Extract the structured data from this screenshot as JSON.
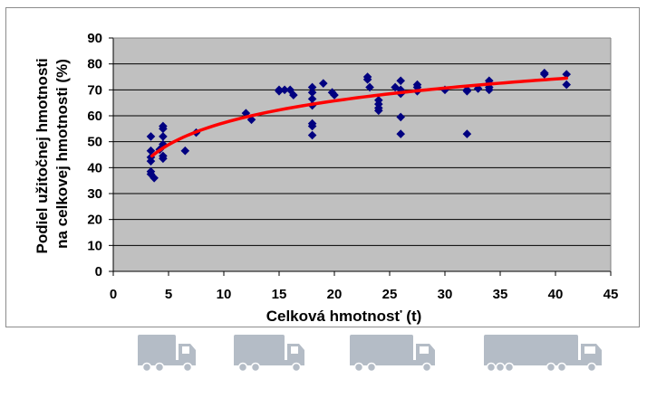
{
  "chart_data": {
    "type": "scatter",
    "title": "",
    "xlabel": "Celková hmotnosť (t)",
    "ylabel_lines": [
      "Podiel užitočnej hmotnosti",
      "na celkovej hmotnosti (%)"
    ],
    "xlim": [
      0,
      45
    ],
    "ylim": [
      0,
      90
    ],
    "x_ticks": [
      0,
      5,
      10,
      15,
      20,
      25,
      30,
      35,
      40,
      45
    ],
    "y_ticks": [
      0,
      10,
      20,
      30,
      40,
      50,
      60,
      70,
      80,
      90
    ],
    "grid": true,
    "legend": "none",
    "plot_background": "#c0c0c0",
    "series": [
      {
        "kind": "points",
        "marker": "diamond",
        "color": "#000080",
        "points": [
          [
            3.4,
            52
          ],
          [
            3.4,
            46.5
          ],
          [
            3.4,
            44
          ],
          [
            3.4,
            42.5
          ],
          [
            3.4,
            38.5
          ],
          [
            3.4,
            37.5
          ],
          [
            3.7,
            36
          ],
          [
            4.2,
            47
          ],
          [
            4.5,
            56
          ],
          [
            4.5,
            55
          ],
          [
            4.5,
            52
          ],
          [
            4.5,
            49
          ],
          [
            4.5,
            44.5
          ],
          [
            4.5,
            43.5
          ],
          [
            6.5,
            46.5
          ],
          [
            7.5,
            53.5
          ],
          [
            12,
            61
          ],
          [
            12.5,
            58.5
          ],
          [
            15,
            70
          ],
          [
            15,
            69.5
          ],
          [
            15.5,
            70
          ],
          [
            16,
            70
          ],
          [
            16.3,
            68
          ],
          [
            18,
            71
          ],
          [
            18,
            69
          ],
          [
            18,
            66.5
          ],
          [
            18,
            64
          ],
          [
            18,
            57
          ],
          [
            18,
            56
          ],
          [
            18,
            52.5
          ],
          [
            19,
            72.5
          ],
          [
            19.8,
            69
          ],
          [
            20,
            68
          ],
          [
            23,
            75
          ],
          [
            23,
            74
          ],
          [
            23.2,
            71
          ],
          [
            24,
            66
          ],
          [
            24,
            64.5
          ],
          [
            24,
            63
          ],
          [
            24,
            62
          ],
          [
            25.5,
            71
          ],
          [
            26,
            73.5
          ],
          [
            26,
            70
          ],
          [
            26,
            68.5
          ],
          [
            26,
            59.5
          ],
          [
            26,
            53
          ],
          [
            27.5,
            72
          ],
          [
            27.5,
            71
          ],
          [
            27.5,
            69.5
          ],
          [
            30,
            70
          ],
          [
            32,
            70
          ],
          [
            32,
            69.5
          ],
          [
            32,
            53
          ],
          [
            33,
            70.5
          ],
          [
            34,
            73.5
          ],
          [
            34,
            72.5
          ],
          [
            34,
            71
          ],
          [
            34,
            70
          ],
          [
            39,
            76.5
          ],
          [
            39,
            76
          ],
          [
            41,
            76
          ],
          [
            41,
            72
          ]
        ]
      },
      {
        "kind": "trendline",
        "type": "logarithmic",
        "color": "#ff0000",
        "x_range": [
          3.5,
          41
        ],
        "y_at_start": 44.5,
        "y_at_end": 74.5
      }
    ]
  },
  "footer": {
    "icons": [
      "small-truck-icon",
      "medium-truck-icon",
      "large-truck-icon",
      "semi-trailer-truck-icon"
    ],
    "icon_color": "#b4bcc6"
  }
}
